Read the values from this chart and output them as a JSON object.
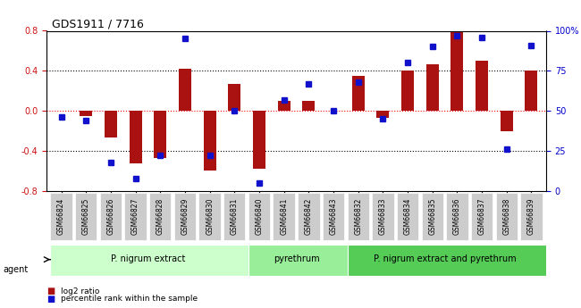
{
  "title": "GDS1911 / 7716",
  "samples": [
    "GSM66824",
    "GSM66825",
    "GSM66826",
    "GSM66827",
    "GSM66828",
    "GSM66829",
    "GSM66830",
    "GSM66831",
    "GSM66840",
    "GSM66841",
    "GSM66842",
    "GSM66843",
    "GSM66832",
    "GSM66833",
    "GSM66834",
    "GSM66835",
    "GSM66836",
    "GSM66837",
    "GSM66838",
    "GSM66839"
  ],
  "log2_ratio": [
    0.0,
    -0.05,
    -0.27,
    -0.52,
    -0.47,
    0.42,
    -0.6,
    0.27,
    -0.58,
    0.1,
    0.1,
    0.0,
    0.35,
    -0.07,
    0.4,
    0.47,
    0.8,
    0.5,
    -0.2,
    0.4
  ],
  "percentile": [
    46,
    44,
    18,
    8,
    22,
    95,
    22,
    50,
    5,
    57,
    67,
    50,
    68,
    45,
    80,
    90,
    97,
    96,
    26,
    91
  ],
  "bar_color": "#aa1111",
  "dot_color": "#1111cc",
  "groups": [
    {
      "label": "P. nigrum extract",
      "start": 0,
      "end": 8,
      "color": "#ccffcc"
    },
    {
      "label": "pyrethrum",
      "start": 8,
      "end": 12,
      "color": "#99ee99"
    },
    {
      "label": "P. nigrum extract and pyrethrum",
      "start": 12,
      "end": 20,
      "color": "#55cc55"
    }
  ],
  "agent_label": "agent",
  "legend_bar_label": "log2 ratio",
  "legend_dot_label": "percentile rank within the sample",
  "ylim_left": [
    -0.8,
    0.8
  ],
  "ylim_right": [
    0,
    100
  ],
  "yticks_left": [
    -0.8,
    -0.4,
    0.0,
    0.4,
    0.8
  ],
  "yticks_right": [
    0,
    25,
    50,
    75,
    100
  ],
  "ytick_labels_right": [
    "0",
    "25",
    "50",
    "75",
    "100%"
  ],
  "hlines": [
    0.4,
    0.0,
    -0.4
  ],
  "hline_styles": [
    "dotted",
    "dashed_red",
    "dotted"
  ],
  "bg_color": "#ffffff",
  "grid_color": "#000000"
}
